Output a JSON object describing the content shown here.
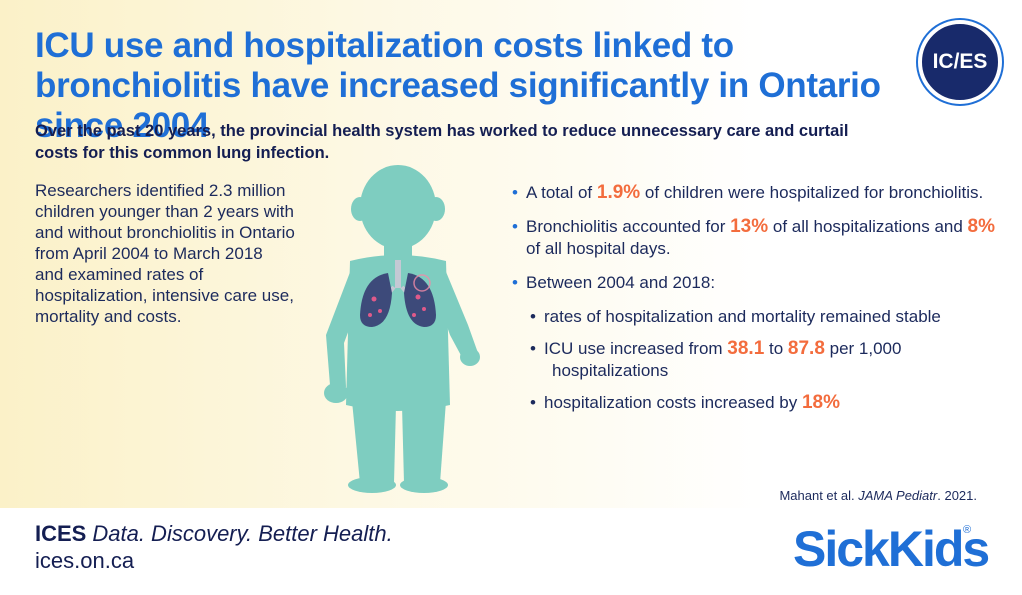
{
  "title": "ICU use and hospitalization costs linked to bronchiolitis have increased significantly in Ontario since 2004",
  "badge": "IC/ES",
  "subtitle": "Over the past 20 years, the provincial health system has worked to reduce unnecessary care and curtail costs for this common lung infection.",
  "intro": "Researchers identified 2.3 million children younger than 2 years with and without bronchiolitis in Ontario from April 2004 to March 2018 and examined rates of hospitalization, intensive care use, mortality and costs.",
  "facts": {
    "f1_pre": "A total of ",
    "f1_num": "1.9%",
    "f1_post": " of children were hospitalized for bronchiolitis.",
    "f2_pre": "Bronchiolitis accounted for ",
    "f2_num1": "13%",
    "f2_mid": " of all hospitalizations and ",
    "f2_num2": "8%",
    "f2_post": " of all hospital days.",
    "f3": "Between 2004 and 2018:",
    "s1": "rates of hospitalization and mortality remained stable",
    "s2_pre": "ICU use increased from ",
    "s2_num1": "38.1",
    "s2_mid": " to ",
    "s2_num2": "87.8",
    "s2_post": " per 1,000",
    "s2_line2": "hospitalizations",
    "s3_pre": "hospitalization costs increased by ",
    "s3_num": "18%"
  },
  "citation": {
    "pre": "Mahant et al. ",
    "journal": "JAMA Pediatr",
    "post": ". 2021."
  },
  "footer": {
    "brand": "ICES",
    "tagline": "Data. Discovery. Better Health.",
    "url": "ices.on.ca"
  },
  "logo": {
    "text": "SickKids",
    "reg": "®"
  },
  "colors": {
    "accent_blue": "#1f6fd6",
    "navy": "#141e52",
    "highlight_orange": "#f36c3d",
    "child_teal": "#7ecdc0"
  }
}
